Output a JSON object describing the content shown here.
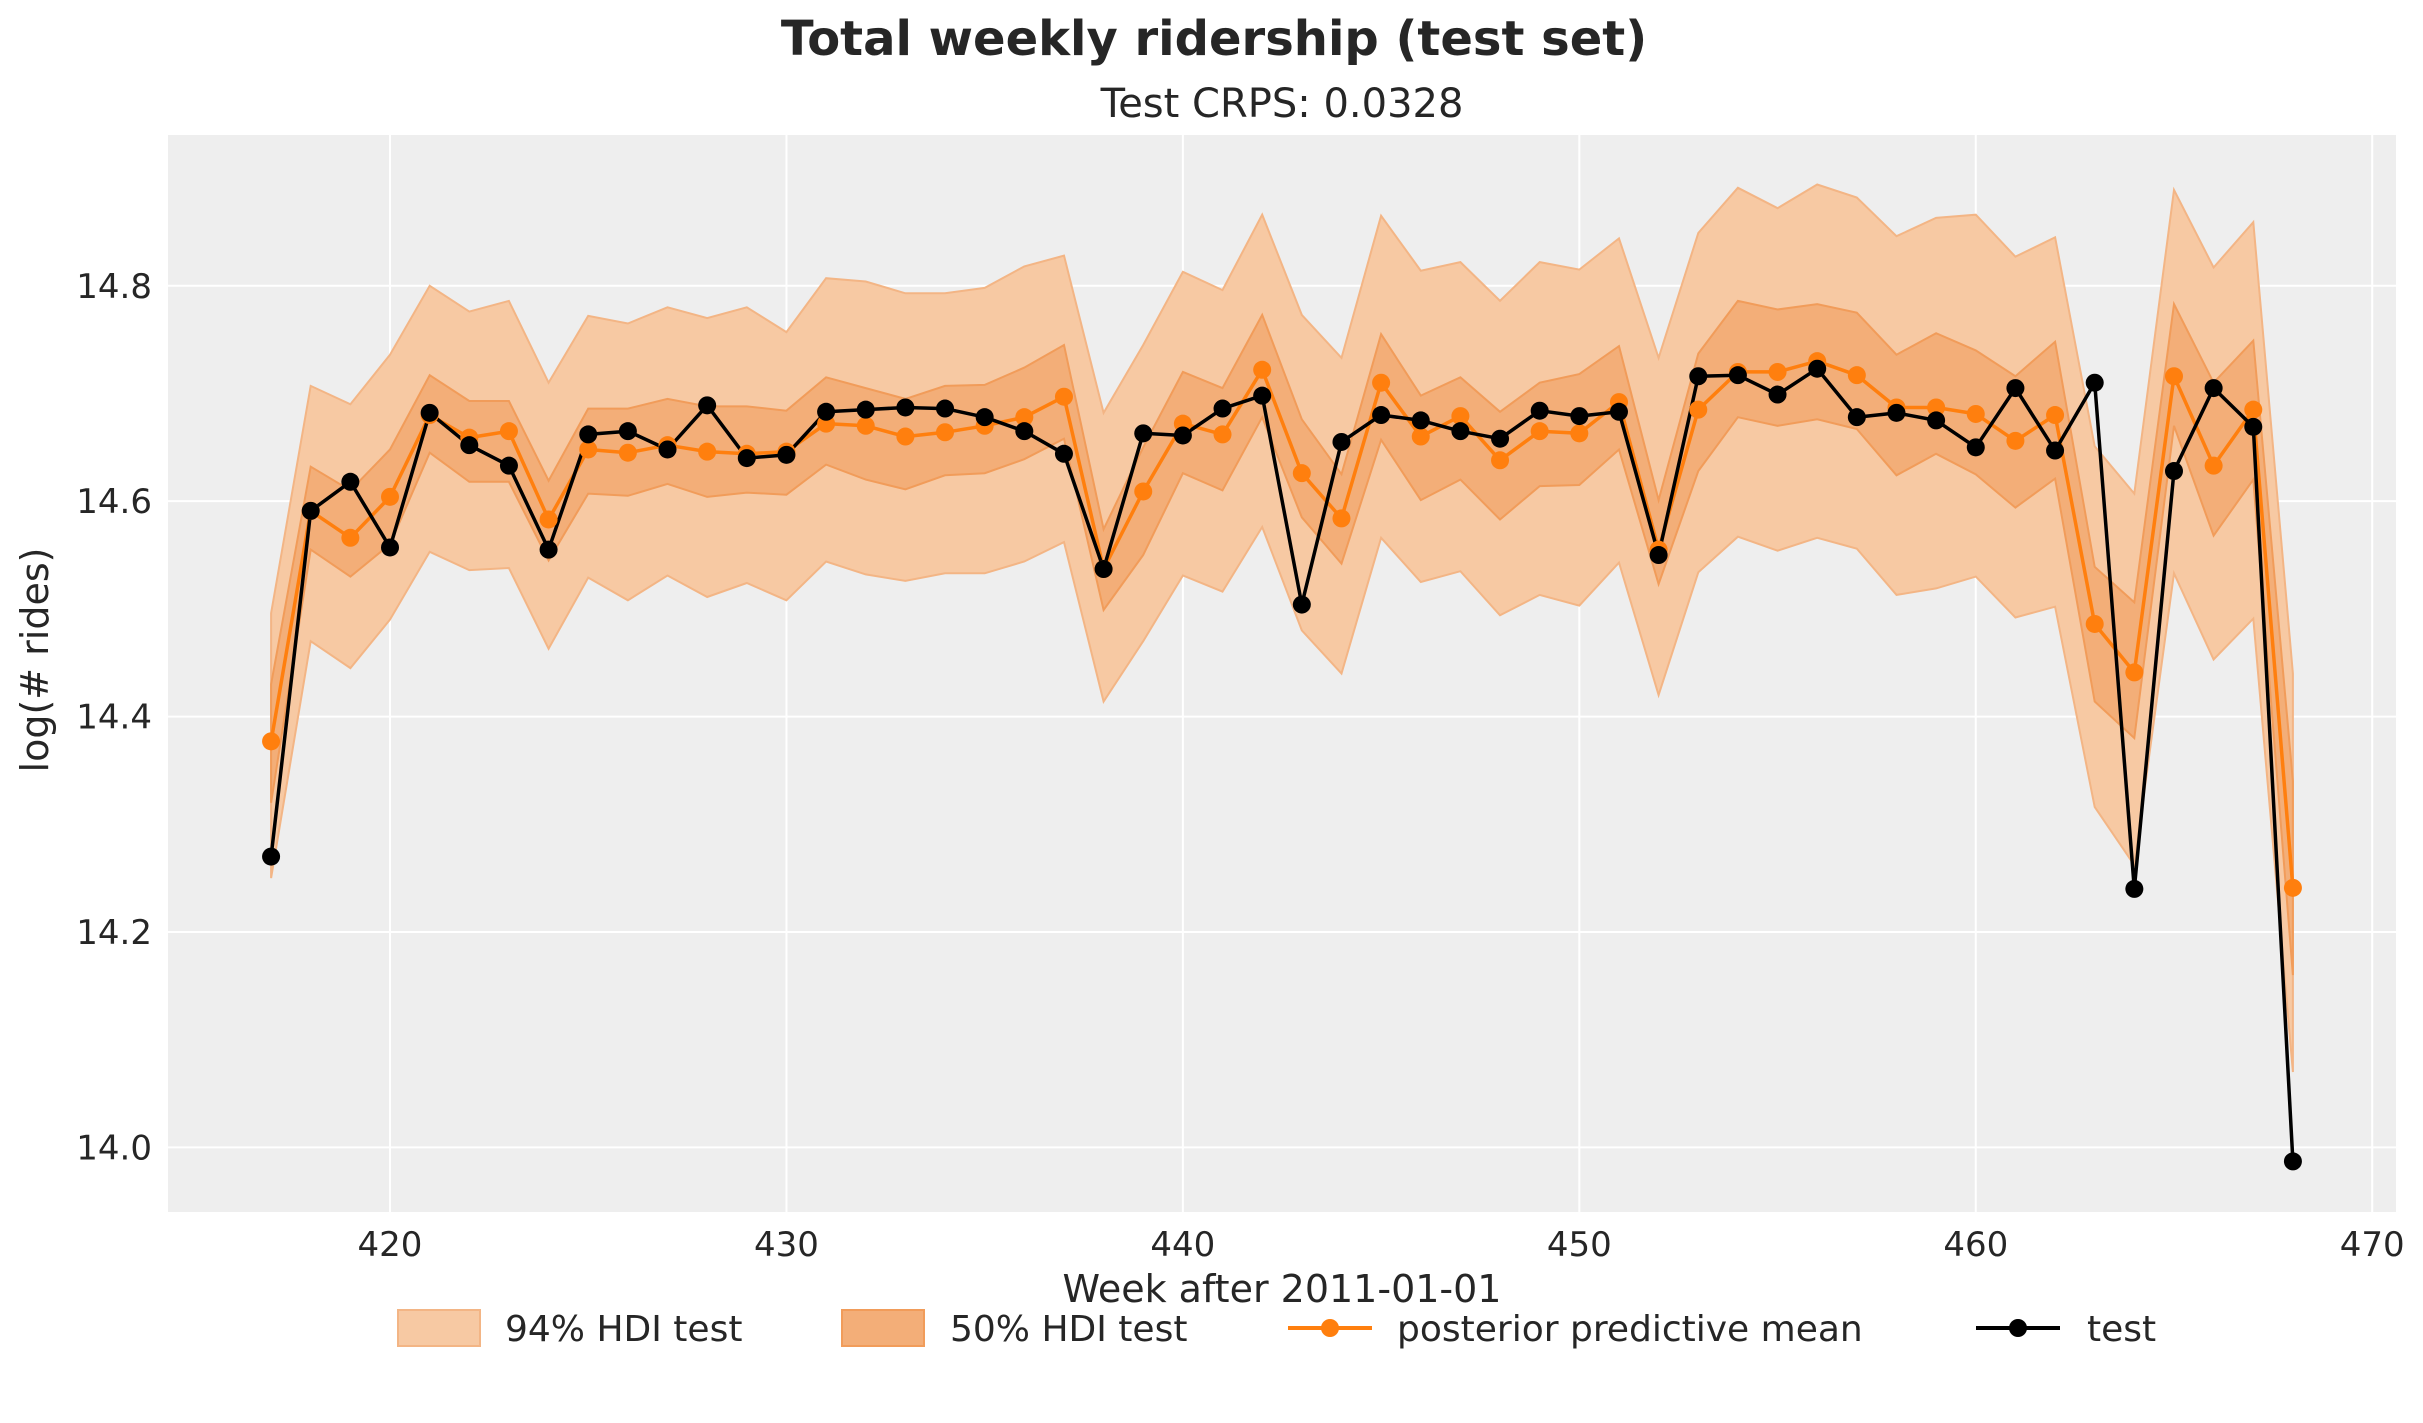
{
  "figure": {
    "title": "Total weekly ridership (test set)"
  },
  "colors": {
    "background": "#eeeeee",
    "grid": "#ffffff",
    "hdi94_fill": "#f7c9a3",
    "hdi94_edge": "#f3b585",
    "hdi50_fill": "#f3ae78",
    "hdi50_edge": "#f19c5a",
    "mean_line": "#ff7f0e",
    "test_line": "#000000"
  },
  "chart_data": {
    "type": "line",
    "title": "Test CRPS: 0.0328",
    "xlabel": "Week after 2011-01-01",
    "ylabel": "log(# rides)",
    "xlim": [
      414.4,
      470.6
    ],
    "ylim": [
      13.94,
      14.94
    ],
    "xticks": [
      420,
      430,
      440,
      450,
      460,
      470
    ],
    "yticks": [
      14.0,
      14.2,
      14.4,
      14.6,
      14.8
    ],
    "ytick_labels": [
      "14.0",
      "14.2",
      "14.4",
      "14.6",
      "14.8"
    ],
    "grid": true,
    "legend_position": "bottom-center",
    "x": [
      417,
      418,
      419,
      420,
      421,
      422,
      423,
      424,
      425,
      426,
      427,
      428,
      429,
      430,
      431,
      432,
      433,
      434,
      435,
      436,
      437,
      438,
      439,
      440,
      441,
      442,
      443,
      444,
      445,
      446,
      447,
      448,
      449,
      450,
      451,
      452,
      453,
      454,
      455,
      456,
      457,
      458,
      459,
      460,
      461,
      462,
      463,
      464,
      465,
      466,
      467,
      468
    ],
    "series": [
      {
        "name": "94% HDI test",
        "kind": "band",
        "lower": [
          14.25,
          14.47,
          14.445,
          14.49,
          14.553,
          14.536,
          14.538,
          14.463,
          14.529,
          14.508,
          14.531,
          14.511,
          14.524,
          14.508,
          14.544,
          14.532,
          14.526,
          14.533,
          14.533,
          14.544,
          14.562,
          14.414,
          14.47,
          14.531,
          14.516,
          14.576,
          14.48,
          14.44,
          14.566,
          14.525,
          14.535,
          14.494,
          14.513,
          14.503,
          14.543,
          14.42,
          14.534,
          14.567,
          14.554,
          14.566,
          14.556,
          14.513,
          14.519,
          14.53,
          14.492,
          14.502,
          14.316,
          14.262,
          14.533,
          14.453,
          14.491,
          14.07
        ],
        "upper": [
          14.496,
          14.707,
          14.69,
          14.736,
          14.8,
          14.776,
          14.786,
          14.71,
          14.772,
          14.765,
          14.78,
          14.77,
          14.78,
          14.757,
          14.807,
          14.804,
          14.793,
          14.793,
          14.798,
          14.818,
          14.828,
          14.682,
          14.745,
          14.813,
          14.796,
          14.866,
          14.773,
          14.733,
          14.865,
          14.814,
          14.822,
          14.786,
          14.822,
          14.815,
          14.844,
          14.733,
          14.849,
          14.891,
          14.872,
          14.894,
          14.882,
          14.846,
          14.863,
          14.866,
          14.827,
          14.845,
          14.651,
          14.607,
          14.889,
          14.817,
          14.859,
          14.44
        ]
      },
      {
        "name": "50% HDI test",
        "kind": "band",
        "lower": [
          14.32,
          14.555,
          14.53,
          14.56,
          14.645,
          14.618,
          14.618,
          14.545,
          14.607,
          14.605,
          14.616,
          14.604,
          14.608,
          14.606,
          14.634,
          14.62,
          14.611,
          14.624,
          14.626,
          14.639,
          14.658,
          14.499,
          14.55,
          14.626,
          14.61,
          14.678,
          14.585,
          14.542,
          14.657,
          14.601,
          14.62,
          14.583,
          14.614,
          14.615,
          14.648,
          14.523,
          14.628,
          14.678,
          14.67,
          14.676,
          14.667,
          14.624,
          14.644,
          14.625,
          14.594,
          14.621,
          14.414,
          14.38,
          14.67,
          14.568,
          14.62,
          14.16
        ],
        "upper": [
          14.43,
          14.632,
          14.61,
          14.648,
          14.717,
          14.693,
          14.693,
          14.619,
          14.686,
          14.686,
          14.695,
          14.688,
          14.688,
          14.684,
          14.715,
          14.705,
          14.695,
          14.707,
          14.708,
          14.724,
          14.745,
          14.574,
          14.65,
          14.72,
          14.705,
          14.773,
          14.676,
          14.625,
          14.755,
          14.698,
          14.715,
          14.683,
          14.71,
          14.718,
          14.744,
          14.601,
          14.737,
          14.786,
          14.778,
          14.783,
          14.775,
          14.736,
          14.756,
          14.74,
          14.716,
          14.748,
          14.539,
          14.506,
          14.783,
          14.71,
          14.749,
          14.34
        ]
      },
      {
        "name": "posterior predictive mean",
        "kind": "line",
        "values": [
          14.377,
          14.591,
          14.566,
          14.604,
          14.68,
          14.659,
          14.665,
          14.583,
          14.648,
          14.645,
          14.652,
          14.646,
          14.644,
          14.646,
          14.672,
          14.67,
          14.66,
          14.664,
          14.67,
          14.678,
          14.697,
          14.537,
          14.609,
          14.672,
          14.662,
          14.722,
          14.626,
          14.584,
          14.71,
          14.66,
          14.679,
          14.638,
          14.665,
          14.663,
          14.692,
          14.555,
          14.685,
          14.72,
          14.72,
          14.73,
          14.717,
          14.687,
          14.687,
          14.681,
          14.656,
          14.68,
          14.486,
          14.441,
          14.716,
          14.633,
          14.685,
          14.241
        ]
      },
      {
        "name": "test",
        "kind": "line",
        "values": [
          14.27,
          14.591,
          14.618,
          14.557,
          14.682,
          14.652,
          14.633,
          14.555,
          14.662,
          14.665,
          14.648,
          14.689,
          14.64,
          14.643,
          14.683,
          14.685,
          14.687,
          14.686,
          14.678,
          14.665,
          14.644,
          14.537,
          14.663,
          14.661,
          14.686,
          14.698,
          14.504,
          14.655,
          14.68,
          14.675,
          14.665,
          14.658,
          14.684,
          14.679,
          14.683,
          14.55,
          14.716,
          14.717,
          14.699,
          14.723,
          14.678,
          14.682,
          14.675,
          14.65,
          14.705,
          14.647,
          14.71,
          14.24,
          14.628,
          14.705,
          14.669,
          13.987
        ]
      }
    ]
  }
}
